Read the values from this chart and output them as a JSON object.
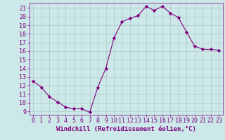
{
  "x": [
    0,
    1,
    2,
    3,
    4,
    5,
    6,
    7,
    8,
    9,
    10,
    11,
    12,
    13,
    14,
    15,
    16,
    17,
    18,
    19,
    20,
    21,
    22,
    23
  ],
  "y": [
    12.5,
    11.8,
    10.7,
    10.1,
    9.5,
    9.3,
    9.3,
    8.9,
    11.8,
    14.0,
    17.5,
    19.4,
    19.8,
    20.1,
    21.2,
    20.7,
    21.2,
    20.4,
    19.9,
    18.2,
    16.6,
    16.2,
    16.2,
    16.1
  ],
  "line_color": "#800080",
  "marker": "D",
  "marker_size": 2.2,
  "bg_color": "#cce8e8",
  "grid_color": "#b0c8c8",
  "xlabel": "Windchill (Refroidissement éolien,°C)",
  "xlim": [
    -0.5,
    23.5
  ],
  "ylim": [
    8.6,
    21.6
  ],
  "yticks": [
    9,
    10,
    11,
    12,
    13,
    14,
    15,
    16,
    17,
    18,
    19,
    20,
    21
  ],
  "xticks": [
    0,
    1,
    2,
    3,
    4,
    5,
    6,
    7,
    8,
    9,
    10,
    11,
    12,
    13,
    14,
    15,
    16,
    17,
    18,
    19,
    20,
    21,
    22,
    23
  ],
  "label_color": "#800080",
  "font_size": 6.0,
  "xlabel_fontsize": 6.5
}
